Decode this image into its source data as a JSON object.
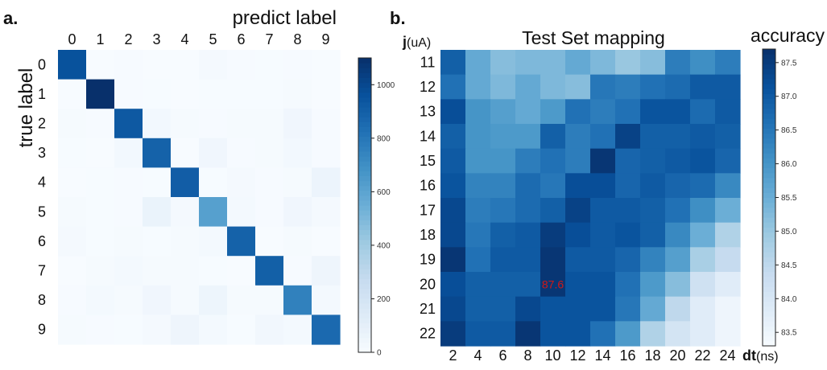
{
  "chart_data": [
    {
      "type": "heatmap",
      "panel_label": "a.",
      "xlabel": "predict label",
      "ylabel": "true label",
      "x_categories": [
        "0",
        "1",
        "2",
        "3",
        "4",
        "5",
        "6",
        "7",
        "8",
        "9"
      ],
      "y_categories": [
        "0",
        "1",
        "2",
        "3",
        "4",
        "5",
        "6",
        "7",
        "8",
        "9"
      ],
      "values": [
        [
          960,
          0,
          5,
          2,
          1,
          15,
          8,
          3,
          5,
          2
        ],
        [
          0,
          1110,
          5,
          4,
          1,
          3,
          4,
          3,
          12,
          2
        ],
        [
          12,
          8,
          930,
          25,
          10,
          5,
          12,
          10,
          40,
          5
        ],
        [
          3,
          2,
          25,
          890,
          2,
          40,
          5,
          12,
          25,
          8
        ],
        [
          2,
          4,
          8,
          3,
          910,
          3,
          15,
          8,
          10,
          60
        ],
        [
          10,
          3,
          5,
          70,
          15,
          620,
          20,
          5,
          40,
          15
        ],
        [
          15,
          4,
          10,
          3,
          12,
          20,
          890,
          0,
          10,
          1
        ],
        [
          2,
          10,
          20,
          10,
          12,
          3,
          0,
          900,
          8,
          50
        ],
        [
          8,
          20,
          10,
          40,
          10,
          55,
          12,
          12,
          760,
          20
        ],
        [
          10,
          8,
          3,
          15,
          50,
          20,
          3,
          35,
          20,
          860
        ]
      ],
      "colorbar": {
        "min": 0,
        "max": 1100,
        "ticks": [
          0,
          200,
          400,
          600,
          800,
          1000
        ]
      },
      "colormap": [
        "#f7fbff",
        "#deebf7",
        "#c6dbef",
        "#9ecae1",
        "#6baed6",
        "#4292c6",
        "#2171b5",
        "#08519c",
        "#08306b"
      ]
    },
    {
      "type": "heatmap",
      "panel_label": "b.",
      "title": "Test Set mapping",
      "xlabel_bold": "dt",
      "xlabel_unit": "(ns)",
      "ylabel_bold": "j",
      "ylabel_unit": "(uA)",
      "colorbar_label": "accuracy",
      "x_categories": [
        "2",
        "4",
        "6",
        "8",
        "10",
        "12",
        "14",
        "16",
        "18",
        "20",
        "22",
        "24"
      ],
      "y_categories": [
        "11",
        "12",
        "13",
        "14",
        "15",
        "16",
        "17",
        "18",
        "19",
        "20",
        "21",
        "22"
      ],
      "values": [
        [
          86.9,
          85.6,
          85.2,
          85.3,
          85.3,
          85.6,
          85.3,
          85.0,
          85.2,
          86.4,
          86.1,
          86.4
        ],
        [
          86.6,
          85.6,
          85.3,
          85.6,
          85.3,
          85.2,
          86.5,
          86.4,
          86.6,
          86.7,
          87.0,
          87.0
        ],
        [
          87.2,
          86.0,
          85.8,
          85.6,
          85.9,
          86.6,
          86.4,
          86.6,
          87.1,
          87.1,
          86.7,
          87.0
        ],
        [
          86.9,
          86.0,
          85.9,
          85.9,
          86.9,
          86.4,
          86.6,
          87.4,
          86.9,
          86.9,
          87.0,
          86.9
        ],
        [
          87.0,
          86.0,
          86.0,
          86.4,
          86.6,
          86.4,
          87.6,
          86.8,
          86.9,
          87.0,
          87.1,
          86.8
        ],
        [
          87.1,
          86.3,
          86.3,
          86.7,
          86.5,
          87.2,
          87.2,
          86.8,
          87.0,
          86.8,
          86.7,
          86.2
        ],
        [
          87.3,
          86.4,
          86.5,
          86.7,
          86.9,
          87.4,
          87.0,
          87.0,
          86.9,
          86.6,
          86.1,
          85.5
        ],
        [
          87.3,
          86.5,
          86.9,
          87.0,
          87.5,
          87.2,
          87.0,
          87.1,
          86.9,
          86.2,
          85.5,
          84.7
        ],
        [
          87.6,
          86.6,
          87.0,
          87.0,
          87.6,
          87.0,
          87.0,
          86.8,
          86.3,
          85.8,
          84.8,
          84.4
        ],
        [
          87.2,
          86.9,
          86.9,
          86.9,
          87.6,
          87.1,
          87.1,
          86.6,
          85.9,
          85.2,
          84.2,
          83.8
        ],
        [
          87.3,
          86.9,
          86.9,
          87.3,
          87.1,
          87.1,
          87.1,
          86.5,
          85.6,
          84.5,
          83.8,
          83.5
        ],
        [
          87.5,
          87.0,
          87.0,
          87.6,
          87.1,
          87.1,
          86.6,
          85.9,
          84.7,
          84.1,
          83.8,
          83.5
        ]
      ],
      "colorbar": {
        "min": 83.3,
        "max": 87.7,
        "ticks": [
          83.5,
          84.0,
          84.5,
          85.0,
          85.5,
          86.0,
          86.5,
          87.0,
          87.5
        ]
      },
      "colormap": [
        "#f7fbff",
        "#deebf7",
        "#c6dbef",
        "#9ecae1",
        "#6baed6",
        "#4292c6",
        "#2171b5",
        "#08519c",
        "#08306b"
      ],
      "annotation": {
        "text": "87.6",
        "row": 9,
        "col": 4,
        "color": "#d01818"
      }
    }
  ]
}
